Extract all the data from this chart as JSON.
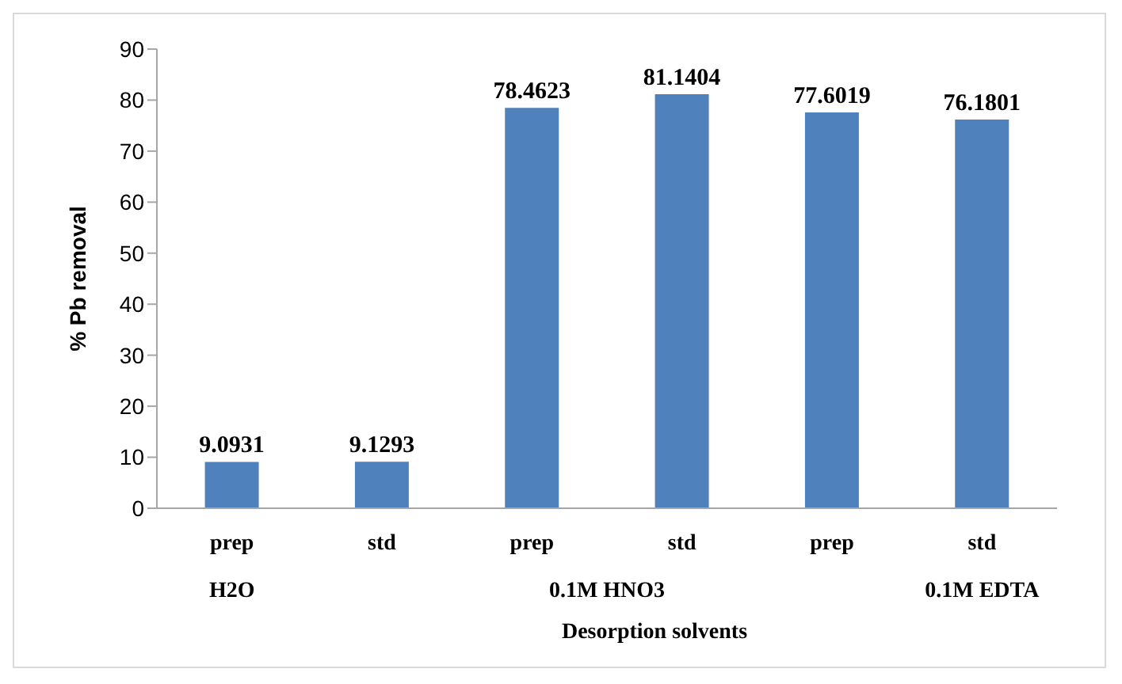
{
  "chart_data": {
    "type": "bar",
    "xlabel": "Desorption solvents",
    "ylabel": "% Pb removal",
    "categories": [
      "prep",
      "std",
      "prep",
      "std",
      "prep",
      "std"
    ],
    "annotations": [
      "H2O",
      "0.1M HNO3",
      "0.1M EDTA"
    ],
    "values": [
      9.0931,
      9.1293,
      78.4623,
      81.1404,
      77.6019,
      76.1801
    ],
    "color": "#4f81bd",
    "ylim": [
      0,
      90
    ],
    "yticks": [
      0,
      10,
      20,
      30,
      40,
      50,
      60,
      70,
      80,
      90
    ],
    "grid": false,
    "legend": false,
    "data_labels": true
  }
}
